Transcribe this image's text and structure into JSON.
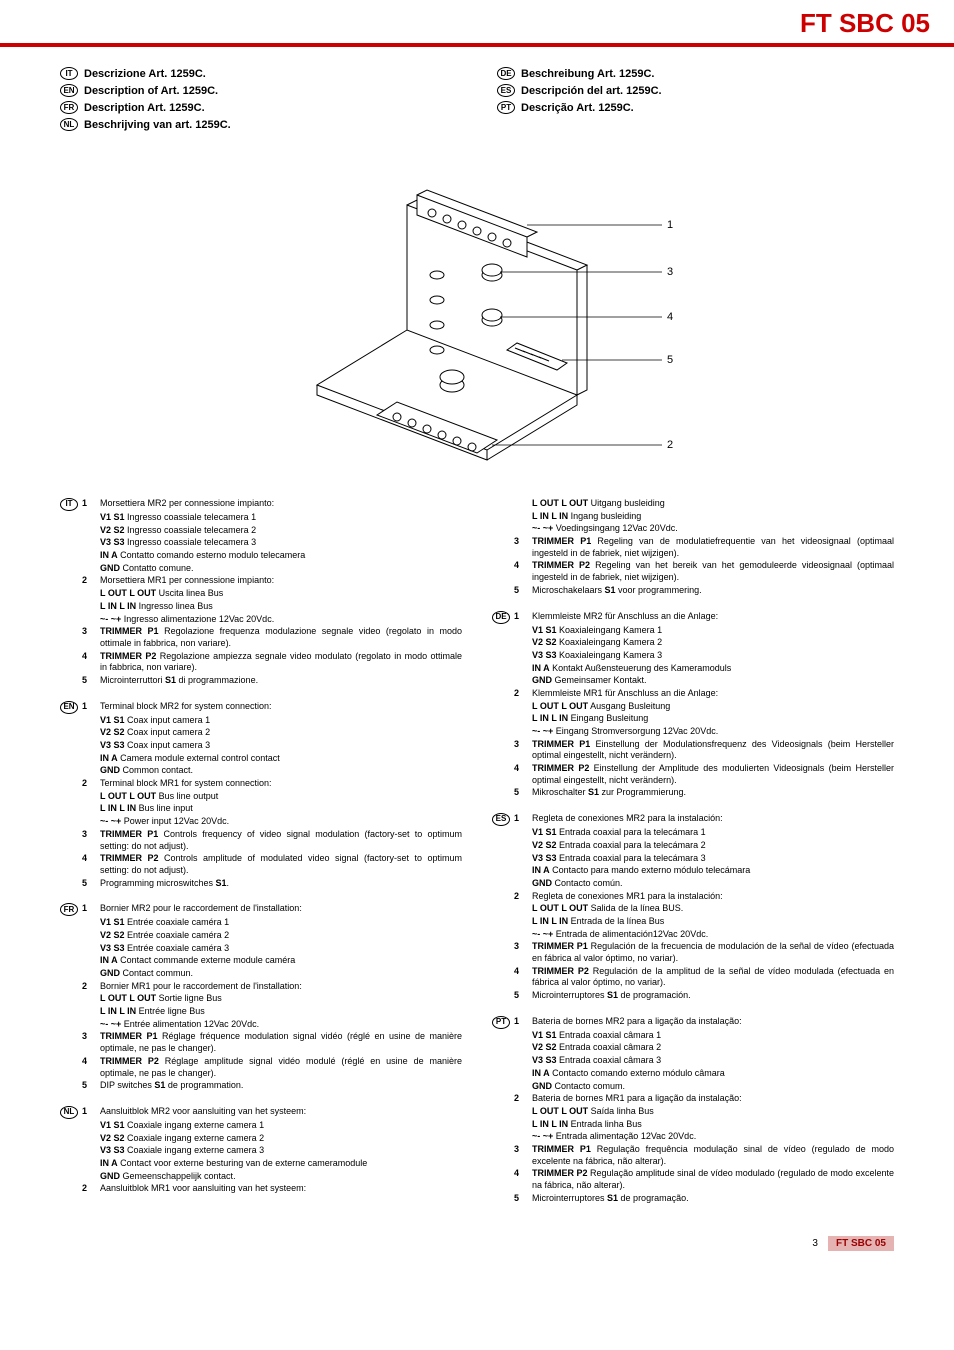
{
  "header": {
    "title": "FT SBC 05"
  },
  "titles": {
    "left": [
      {
        "lang": "IT",
        "text": "Descrizione Art. 1259C."
      },
      {
        "lang": "EN",
        "text": "Description of Art. 1259C."
      },
      {
        "lang": "FR",
        "text": "Description Art. 1259C."
      },
      {
        "lang": "NL",
        "text": "Beschrijving van art. 1259C."
      }
    ],
    "right": [
      {
        "lang": "DE",
        "text": "Beschreibung Art. 1259C."
      },
      {
        "lang": "ES",
        "text": "Descripción del art. 1259C."
      },
      {
        "lang": "PT",
        "text": "Descrição Art. 1259C."
      }
    ]
  },
  "diagram": {
    "callouts": [
      "1",
      "3",
      "4",
      "5",
      "2"
    ]
  },
  "langs": {
    "IT": {
      "items": [
        {
          "n": "1",
          "lines": [
            "Morsettiera MR2 per connessione impianto:",
            "<b>V1 S1</b> Ingresso coassiale telecamera 1",
            "<b>V2 S2</b> Ingresso coassiale telecamera 2",
            "<b>V3 S3</b> Ingresso coassiale telecamera 3",
            "<b>IN A</b> Contatto comando esterno modulo telecamera",
            "<b>GND</b> Contatto comune."
          ]
        },
        {
          "n": "2",
          "lines": [
            "Morsettiera MR1 per connessione impianto:",
            "<b>L OUT L OUT</b> Uscita linea Bus",
            "<b>L IN L IN</b> Ingresso linea Bus",
            "<b>~- ~+</b> Ingresso alimentazione 12Vac 20Vdc."
          ]
        },
        {
          "n": "3",
          "lines": [
            "<b>TRIMMER P1</b> Regolazione frequenza modulazione segnale video (regolato in modo ottimale in fabbrica, non variare)."
          ]
        },
        {
          "n": "4",
          "lines": [
            "<b>TRIMMER P2</b> Regolazione ampiezza segnale video modulato (regolato in modo ottimale in fabbrica, non variare)."
          ]
        },
        {
          "n": "5",
          "lines": [
            "Microinterruttori <b>S1</b> di programmazione."
          ]
        }
      ]
    },
    "EN": {
      "items": [
        {
          "n": "1",
          "lines": [
            "Terminal block MR2 for system connection:",
            "<b>V1 S1</b> Coax input camera 1",
            "<b>V2 S2</b> Coax input camera 2",
            "<b>V3 S3</b> Coax input camera 3",
            "<b>IN A</b> Camera module external control contact",
            "<b>GND</b> Common contact."
          ]
        },
        {
          "n": "2",
          "lines": [
            "Terminal block MR1 for system connection:",
            "<b>L OUT L OUT</b> Bus line output",
            "<b>L IN L IN</b> Bus line input",
            "<b>~- ~+</b> Power input 12Vac 20Vdc."
          ]
        },
        {
          "n": "3",
          "lines": [
            "<b>TRIMMER P1</b> Controls frequency of video signal modulation (factory-set to optimum setting: do not adjust)."
          ]
        },
        {
          "n": "4",
          "lines": [
            "<b>TRIMMER P2</b> Controls amplitude of modulated video signal (factory-set to optimum setting: do not adjust)."
          ]
        },
        {
          "n": "5",
          "lines": [
            "Programming microswitches <b>S1</b>."
          ]
        }
      ]
    },
    "FR": {
      "items": [
        {
          "n": "1",
          "lines": [
            "Bornier MR2 pour le raccordement de l'installation:",
            "<b>V1 S1</b> Entrée coaxiale caméra 1",
            "<b>V2 S2</b> Entrée coaxiale caméra 2",
            "<b>V3 S3</b> Entrée coaxiale caméra 3",
            "<b>IN A</b> Contact commande externe module caméra",
            "<b>GND</b> Contact commun."
          ]
        },
        {
          "n": "2",
          "lines": [
            "Bornier MR1 pour le raccordement de l'installation:",
            "<b>L OUT L OUT</b> Sortie ligne Bus",
            "<b>L IN L IN</b> Entrée ligne Bus",
            "<b>~- ~+</b> Entrée alimentation 12Vac 20Vdc."
          ]
        },
        {
          "n": "3",
          "lines": [
            "<b>TRIMMER P1</b> Réglage fréquence modulation signal vidéo (réglé en usine de manière optimale, ne pas le changer)."
          ]
        },
        {
          "n": "4",
          "lines": [
            "<b>TRIMMER P2</b> Réglage amplitude signal vidéo modulé (réglé en usine de manière optimale, ne pas le changer)."
          ]
        },
        {
          "n": "5",
          "lines": [
            "DIP switches <b>S1</b> de programmation."
          ]
        }
      ]
    },
    "NL": {
      "items": [
        {
          "n": "1",
          "lines": [
            "Aansluitblok MR2 voor aansluiting van het systeem:",
            "<b>V1 S1</b> Coaxiale ingang externe camera 1",
            "<b>V2 S2</b> Coaxiale ingang externe camera 2",
            "<b>V3 S3</b> Coaxiale ingang externe camera 3",
            "<b>IN A</b> Contact voor externe besturing van de externe cameramodule",
            "<b>GND</b> Gemeenschappelijk contact."
          ]
        },
        {
          "n": "2",
          "lines": [
            "Aansluitblok MR1 voor aansluiting van het systeem:",
            "<b>L OUT L OUT</b> Uitgang busleiding",
            "<b>L IN L IN</b> Ingang busleiding",
            "<b>~- ~+</b> Voedingsingang 12Vac 20Vdc."
          ]
        },
        {
          "n": "3",
          "lines": [
            "<b>TRIMMER P1</b> Regeling van de modulatiefrequentie van het videosignaal (optimaal ingesteld in de fabriek, niet wijzigen)."
          ]
        },
        {
          "n": "4",
          "lines": [
            "<b>TRIMMER P2</b> Regeling van het bereik van het gemoduleerde videosignaal (optimaal ingesteld in de fabriek, niet wijzigen)."
          ]
        },
        {
          "n": "5",
          "lines": [
            "Microschakelaars <b>S1</b> voor programmering."
          ]
        }
      ]
    },
    "DE": {
      "items": [
        {
          "n": "1",
          "lines": [
            "Klemmleiste MR2  für Anschluss an die Anlage:",
            "<b>V1 S1</b> Koaxialeingang Kamera 1",
            "<b>V2 S2</b> Koaxialeingang Kamera 2",
            "<b>V3 S3</b> Koaxialeingang Kamera 3",
            "<b>IN A</b>  Kontakt Außensteuerung des Kameramoduls",
            "<b>GND</b>  Gemeinsamer Kontakt."
          ]
        },
        {
          "n": "2",
          "lines": [
            " Klemmleiste MR1  für Anschluss an die Anlage:",
            "<b>L OUT L OUT</b> Ausgang Busleitung",
            "<b>L IN L IN</b>  Eingang Busleitung",
            "<b>~- ~+</b> Eingang Stromversorgung 12Vac 20Vdc."
          ]
        },
        {
          "n": "3",
          "lines": [
            "<b>TRIMMER P1</b> Einstellung der Modulationsfrequenz des Videosignals (beim Hersteller optimal eingestellt, nicht verändern)."
          ]
        },
        {
          "n": "4",
          "lines": [
            "<b>TRIMMER P2</b> Einstellung der Amplitude des modulierten Videosignals (beim Hersteller optimal eingestellt, nicht verändern)."
          ]
        },
        {
          "n": "5",
          "lines": [
            "Mikroschalter <b>S1</b> zur Programmierung."
          ]
        }
      ]
    },
    "ES": {
      "items": [
        {
          "n": "1",
          "lines": [
            "Regleta de conexiones MR2 para la instalación:",
            "<b>V1 S1</b> Entrada coaxial para la telecámara 1",
            "<b>V2 S2</b> Entrada coaxial para la telecámara 2",
            "<b>V3 S3</b> Entrada coaxial para la telecámara 3",
            "<b>IN A</b> Contacto para mando externo módulo telecámara",
            "<b>GND</b> Contacto común."
          ]
        },
        {
          "n": "2",
          "lines": [
            "Regleta de conexiones MR1 para la instalación:",
            "<b>L OUT L OUT</b> Salida de la línea BUS.",
            "<b>L IN L IN</b> Entrada de la línea Bus",
            "<b>~- ~+</b> Entrada de alimentación12Vac 20Vdc."
          ]
        },
        {
          "n": "3",
          "lines": [
            "<b>TRIMMER P1</b> Regulación de la frecuencia de modulación de la señal de vídeo (efectuada en fábrica al valor óptimo, no variar)."
          ]
        },
        {
          "n": "4",
          "lines": [
            "<b>TRIMMER P2</b> Regulación de la amplitud de la señal de vídeo modulada (efectuada en fábrica al valor óptimo, no variar)."
          ]
        },
        {
          "n": "5",
          "lines": [
            "Microinterruptores <b>S1</b> de programación."
          ]
        }
      ]
    },
    "PT": {
      "items": [
        {
          "n": "1",
          "lines": [
            "Bateria de bornes MR2  para a ligação da instalação:",
            "<b>V1 S1</b> Entrada coaxial câmara  1",
            "<b>V2 S2</b> Entrada coaxial câmara 2",
            "<b>V3 S3</b> Entrada coaxial câmara 3",
            "<b>IN A</b> Contacto comando externo módulo câmara",
            "<b>GND</b> Contacto comum."
          ]
        },
        {
          "n": "2",
          "lines": [
            "Bateria de bornes MR1 para a ligação da instalação:",
            "<b>L OUT L OUT</b> Saída linha Bus",
            "<b>L IN L IN</b> Entrada linha Bus",
            "<b>~- ~+</b> Entrada alimentação 12Vac 20Vdc."
          ]
        },
        {
          "n": "3",
          "lines": [
            "<b>TRIMMER P1</b> Regulação frequência modulação sinal de vídeo (regulado de modo excelente na fábrica, não alterar)."
          ]
        },
        {
          "n": "4",
          "lines": [
            "<b>TRIMMER P2</b> Regulação amplitude sinal de vídeo modulado (regulado de modo excelente na fábrica, não alterar)."
          ]
        },
        {
          "n": "5",
          "lines": [
            "Microinterruptores <b>S1</b> de programação."
          ]
        }
      ]
    }
  },
  "footer": {
    "page": "3",
    "code": "FT SBC 05"
  }
}
